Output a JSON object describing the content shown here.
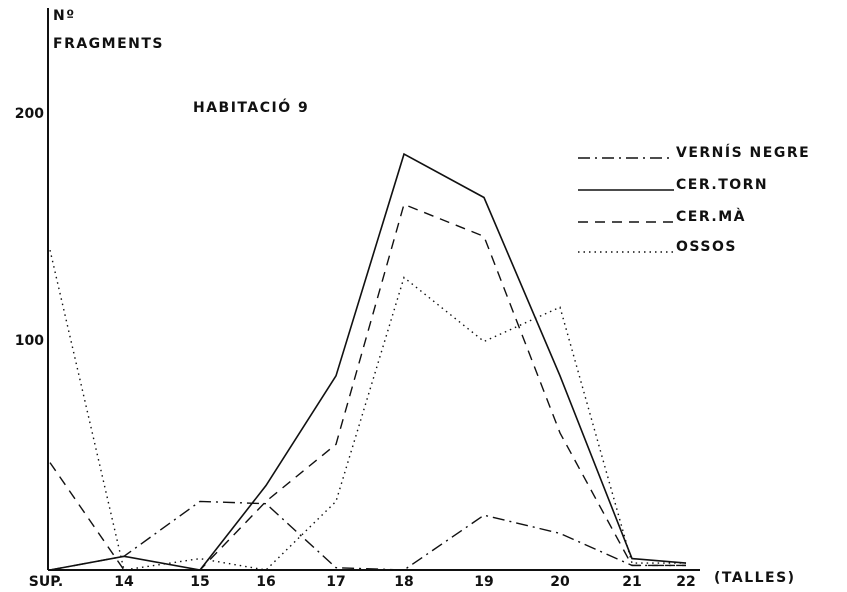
{
  "chart_data": {
    "type": "line",
    "ylabel_line1": "Nº",
    "ylabel_line2": "FRAGMENTS",
    "subtitle": "HABITACIÓ 9",
    "xlabel": "(TALLES)",
    "categories": [
      "SUP.",
      "14",
      "15",
      "16",
      "17",
      "18",
      "19",
      "20",
      "21",
      "22"
    ],
    "y_ticks": [
      100,
      200
    ],
    "ylim": [
      0,
      260
    ],
    "grid": false,
    "legend_position": "right",
    "series": [
      {
        "name": "VERNÍS NEGRE",
        "style": "dashdot",
        "values": [
          0,
          6,
          30,
          29,
          1,
          0,
          24,
          16,
          2,
          2
        ]
      },
      {
        "name": "CER.TORN",
        "style": "solid",
        "values": [
          0,
          6,
          0,
          37,
          85,
          182,
          163,
          85,
          5,
          3
        ]
      },
      {
        "name": "CER.MÀ",
        "style": "dashed",
        "values": [
          47,
          0,
          0,
          30,
          55,
          160,
          146,
          60,
          2,
          2
        ]
      },
      {
        "name": "OSSOS",
        "style": "dotted",
        "values": [
          140,
          0,
          5,
          0,
          30,
          128,
          100,
          115,
          3,
          3
        ]
      }
    ]
  }
}
